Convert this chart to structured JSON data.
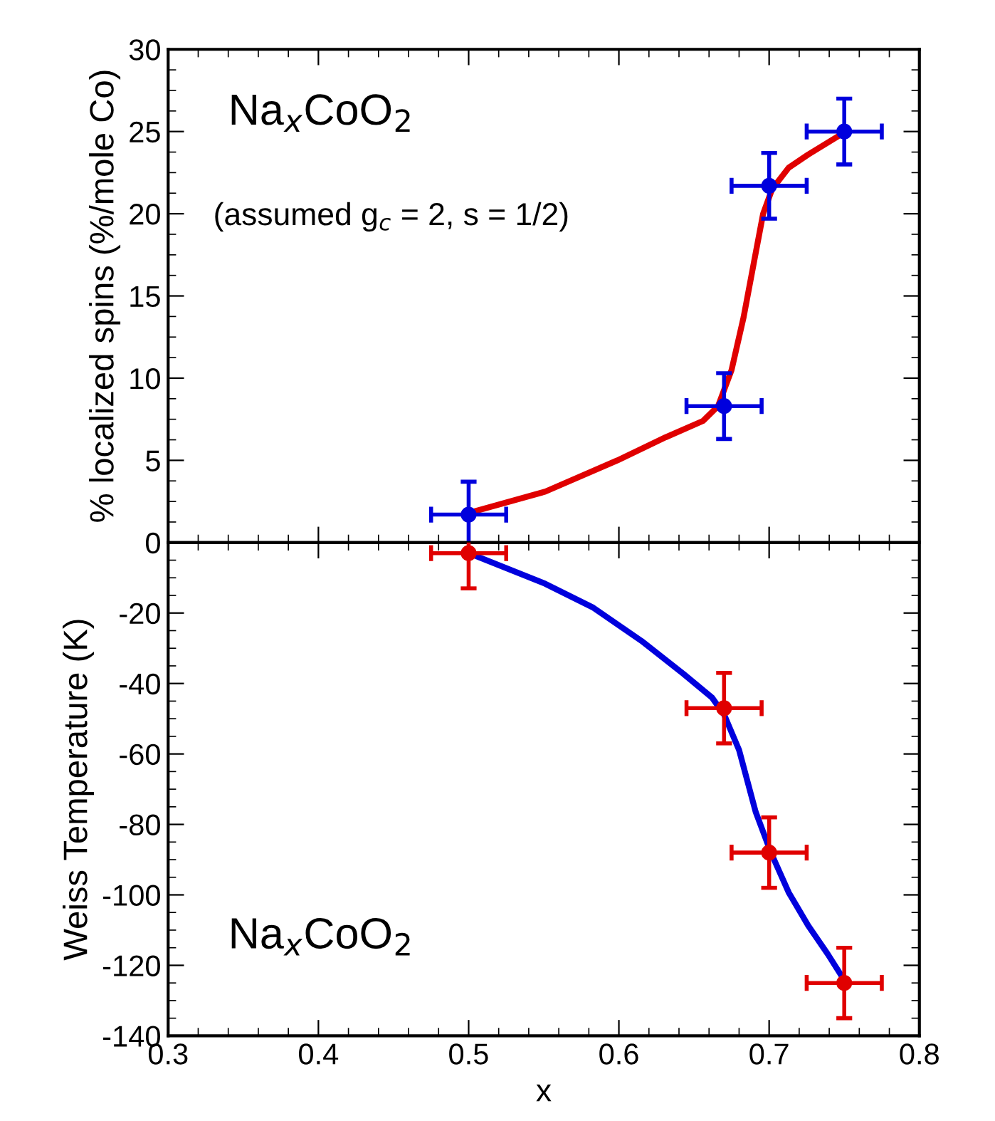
{
  "chart_data": [
    {
      "type": "line",
      "ylabel": "% localized spins (%/mole Co)",
      "xlim": [
        0.3,
        0.8
      ],
      "xticks": [
        0.3,
        0.4,
        0.5,
        0.6,
        0.7,
        0.8
      ],
      "ylim": [
        0,
        30
      ],
      "yticks": [
        0,
        5,
        10,
        15,
        20,
        25,
        30
      ],
      "tick_labels": "y",
      "grid": false,
      "legend": false,
      "annotations": [
        "Na$_{x}$CoO$_{2}$",
        "(assumed g$_{c}$ = 2, s = 1/2)"
      ],
      "series": [
        {
          "color": "#e00000",
          "line_style": "solid",
          "x": [
            0.5,
            0.551,
            0.599,
            0.631,
            0.656,
            0.666,
            0.675,
            0.683,
            0.69,
            0.696,
            0.702,
            0.713,
            0.726,
            0.751
          ],
          "values": [
            1.8,
            3.1,
            5.0,
            6.4,
            7.4,
            8.3,
            10.5,
            13.7,
            17.1,
            20.0,
            21.5,
            22.8,
            23.6,
            25.0
          ]
        },
        {
          "type": "scatter",
          "marker": "circle",
          "color": "#0000dd",
          "x": [
            0.5,
            0.67,
            0.7,
            0.75
          ],
          "values": [
            1.7,
            8.3,
            21.7,
            25.0
          ],
          "errors": [
            2,
            2,
            2,
            2
          ],
          "xerrors": [
            0.025,
            0.025,
            0.025,
            0.025
          ]
        }
      ]
    },
    {
      "type": "line",
      "xlabel": "x",
      "ylabel": "Weiss Temperature (K)",
      "xlim": [
        0.3,
        0.8
      ],
      "xticks": [
        0.3,
        0.4,
        0.5,
        0.6,
        0.7,
        0.8
      ],
      "ylim": [
        -140,
        0
      ],
      "yticks": [
        {
          "value": 0,
          "label": null
        },
        -20,
        -40,
        -60,
        -80,
        -100,
        -120,
        -140
      ],
      "grid": false,
      "legend": false,
      "annotations": [
        "Na$_{x}$CoO$_{2}$"
      ],
      "series": [
        {
          "color": "#0000dd",
          "line_style": "solid",
          "x": [
            0.5,
            0.551,
            0.583,
            0.615,
            0.643,
            0.662,
            0.67,
            0.68,
            0.691,
            0.701,
            0.713,
            0.726,
            0.739,
            0.75
          ],
          "values": [
            -3,
            -11.7,
            -18.5,
            -27.9,
            -37.3,
            -44,
            -48.8,
            -58.9,
            -76.4,
            -87.8,
            -99.3,
            -108.7,
            -116.8,
            -124.2
          ]
        },
        {
          "type": "scatter",
          "marker": "circle",
          "color": "#e00000",
          "x": [
            0.5,
            0.67,
            0.7,
            0.75
          ],
          "values": [
            -3,
            -47,
            -88,
            -125
          ],
          "errors": [
            10,
            10,
            10,
            10
          ],
          "xerrors": [
            0.025,
            0.025,
            0.025,
            0.025
          ]
        }
      ]
    }
  ]
}
